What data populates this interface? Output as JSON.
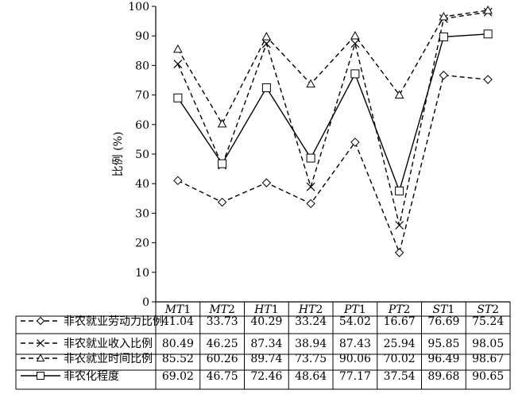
{
  "chart_data": {
    "type": "line",
    "ylabel": "比例 (%)",
    "ylim": [
      0,
      100
    ],
    "y_ticks": [
      "0",
      "10",
      "20",
      "30",
      "40",
      "50",
      "60",
      "70",
      "80",
      "90",
      "100"
    ],
    "categories": [
      {
        "prefix": "MT",
        "suffix": "1"
      },
      {
        "prefix": "MT",
        "suffix": "2"
      },
      {
        "prefix": "HT",
        "suffix": "1"
      },
      {
        "prefix": "HT",
        "suffix": "2"
      },
      {
        "prefix": "PT",
        "suffix": "1"
      },
      {
        "prefix": "PT",
        "suffix": "2"
      },
      {
        "prefix": "ST",
        "suffix": "1"
      },
      {
        "prefix": "ST",
        "suffix": "2"
      }
    ],
    "series": [
      {
        "name": "非农就业劳动力比例",
        "marker": "diamond",
        "dash": "dashed",
        "values": [
          41.04,
          33.73,
          40.29,
          33.24,
          54.02,
          16.67,
          76.69,
          75.24
        ],
        "labels": [
          "41.04",
          "33.73",
          "40.29",
          "33.24",
          "54.02",
          "16.67",
          "76.69",
          "75.24"
        ]
      },
      {
        "name": "非农就业收入比例",
        "marker": "x",
        "dash": "dashed",
        "values": [
          80.49,
          46.25,
          87.34,
          38.94,
          87.43,
          25.94,
          95.85,
          98.05
        ],
        "labels": [
          "80.49",
          "46.25",
          "87.34",
          "38.94",
          "87.43",
          "25.94",
          "95.85",
          "98.05"
        ]
      },
      {
        "name": "非农就业时间比例",
        "marker": "triangle",
        "dash": "dashed",
        "values": [
          85.52,
          60.26,
          89.74,
          73.75,
          90.06,
          70.02,
          96.49,
          98.67
        ],
        "labels": [
          "85.52",
          "60.26",
          "89.74",
          "73.75",
          "90.06",
          "70.02",
          "96.49",
          "98.67"
        ]
      },
      {
        "name": "非农化程度",
        "marker": "square",
        "dash": "solid",
        "values": [
          69.02,
          46.75,
          72.46,
          48.64,
          77.17,
          37.54,
          89.68,
          90.65
        ],
        "labels": [
          "69.02",
          "46.75",
          "72.46",
          "48.64",
          "77.17",
          "37.54",
          "89.68",
          "90.65"
        ]
      }
    ],
    "grid": false,
    "legend": "data-table"
  }
}
